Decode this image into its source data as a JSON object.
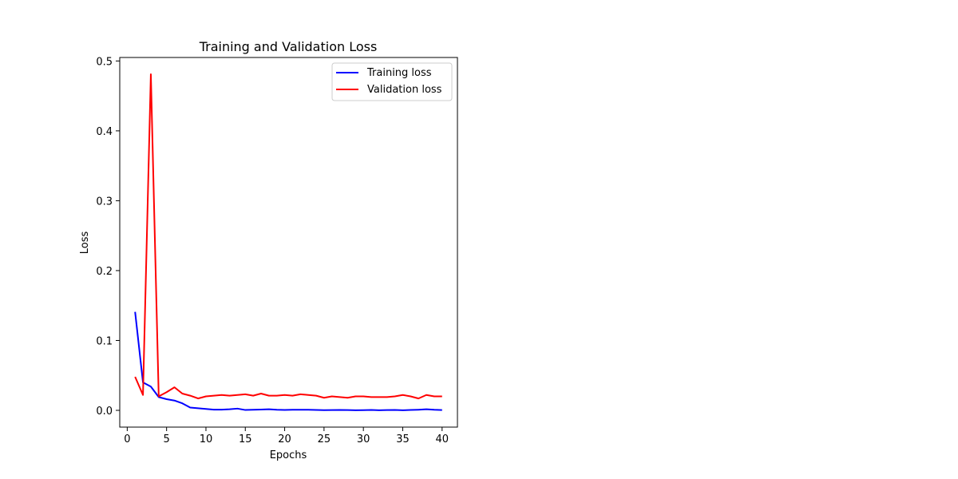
{
  "chart_data": {
    "type": "line",
    "title": "Training and Validation Loss",
    "xlabel": "Epochs",
    "ylabel": "Loss",
    "xlim": [
      -0.95,
      41.95
    ],
    "ylim": [
      -0.024,
      0.505
    ],
    "xticks": [
      0,
      5,
      10,
      15,
      20,
      25,
      30,
      35,
      40
    ],
    "yticks": [
      0.0,
      0.1,
      0.2,
      0.3,
      0.4,
      0.5
    ],
    "ytick_labels": [
      "0.0",
      "0.1",
      "0.2",
      "0.3",
      "0.4",
      "0.5"
    ],
    "legend_position": "top-right",
    "grid": false,
    "x": [
      1,
      2,
      3,
      4,
      5,
      6,
      7,
      8,
      9,
      10,
      11,
      12,
      13,
      14,
      15,
      16,
      17,
      18,
      19,
      20,
      21,
      22,
      23,
      24,
      25,
      26,
      27,
      28,
      29,
      30,
      31,
      32,
      33,
      34,
      35,
      36,
      37,
      38,
      39,
      40
    ],
    "series": [
      {
        "name": "Training loss",
        "color": "#0000ff",
        "values": [
          0.141,
          0.04,
          0.034,
          0.019,
          0.016,
          0.014,
          0.01,
          0.004,
          0.003,
          0.002,
          0.001,
          0.001,
          0.0015,
          0.0025,
          0.0005,
          0.0008,
          0.0012,
          0.0015,
          0.0008,
          0.0005,
          0.0009,
          0.0008,
          0.0009,
          0.0006,
          0.0003,
          0.0004,
          0.0006,
          0.0004,
          0.0002,
          0.0003,
          0.0005,
          0.0002,
          0.0004,
          0.0006,
          0.0002,
          0.0005,
          0.0009,
          0.0015,
          0.0008,
          0.0004
        ]
      },
      {
        "name": "Validation loss",
        "color": "#ff0000",
        "values": [
          0.048,
          0.022,
          0.481,
          0.02,
          0.026,
          0.033,
          0.024,
          0.021,
          0.017,
          0.02,
          0.021,
          0.022,
          0.021,
          0.022,
          0.023,
          0.021,
          0.024,
          0.021,
          0.021,
          0.022,
          0.021,
          0.023,
          0.022,
          0.021,
          0.018,
          0.02,
          0.019,
          0.018,
          0.02,
          0.02,
          0.019,
          0.019,
          0.019,
          0.02,
          0.022,
          0.02,
          0.017,
          0.022,
          0.02,
          0.02
        ]
      }
    ]
  }
}
